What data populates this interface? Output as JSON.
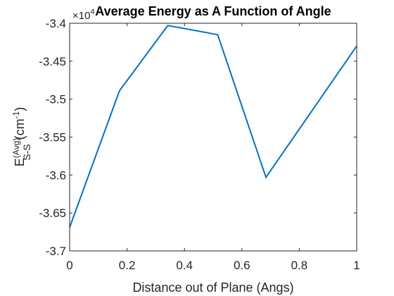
{
  "chart_data": {
    "type": "line",
    "title": "Average Energy as A Function of Angle",
    "xlabel": "Distance out of Plane (Angs)",
    "ylabel": {
      "base": "E",
      "superscript": "(Avg)",
      "subscript": "S-S",
      "unit_prefix": "(cm",
      "unit_exponent": "-1",
      "unit_suffix": ")"
    },
    "y_multiplier": {
      "prefix": "×10",
      "exponent": "4"
    },
    "xlim": [
      0,
      1
    ],
    "ylim": [
      -3.7,
      -3.4
    ],
    "x_ticks": [
      "0",
      "0.2",
      "0.4",
      "0.6",
      "0.8",
      "1"
    ],
    "y_ticks": [
      "-3.4",
      "-3.45",
      "-3.5",
      "-3.55",
      "-3.6",
      "-3.65",
      "-3.7"
    ],
    "x_tick_values": [
      0,
      0.2,
      0.4,
      0.6,
      0.8,
      1
    ],
    "y_tick_values": [
      -3.4,
      -3.45,
      -3.5,
      -3.55,
      -3.6,
      -3.65,
      -3.7
    ],
    "grid": false,
    "series": [
      {
        "color": "#0072BD",
        "x": [
          0,
          0.1736,
          0.342,
          0.5157,
          0.6838,
          1.0
        ],
        "y": [
          -3.669,
          -3.489,
          -3.403,
          -3.415,
          -3.603,
          -3.43
        ]
      }
    ]
  }
}
